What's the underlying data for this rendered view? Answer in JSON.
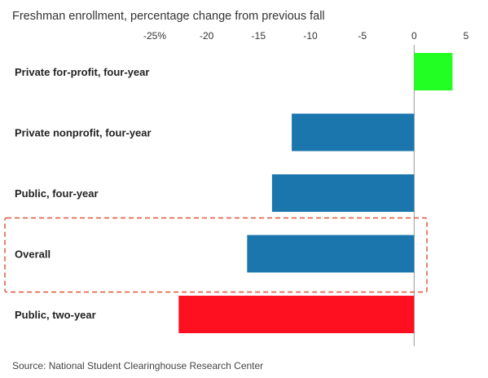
{
  "chart_data": {
    "type": "bar",
    "orientation": "horizontal",
    "title": "Freshman enrollment, percentage change from previous fall",
    "source": "Source: National Student Clearinghouse Research Center",
    "xlim": [
      -25,
      5
    ],
    "tick_values": [
      -25,
      -20,
      -15,
      -10,
      -5,
      0,
      5
    ],
    "tick_labels": [
      "-25%",
      "-20",
      "-15",
      "-10",
      "-5",
      "0",
      "5"
    ],
    "gridlines": false,
    "zero_line": true,
    "highlighted_category": "Overall",
    "highlight_color": "#e0533a",
    "categories": [
      "Private for-profit, four-year",
      "Private nonprofit, four-year",
      "Public, four-year",
      "Overall",
      "Public, two-year"
    ],
    "values": [
      3.7,
      -11.8,
      -13.7,
      -16.1,
      -22.7
    ],
    "bar_colors": [
      "#22ff22",
      "#1a76ad",
      "#1a76ad",
      "#1a76ad",
      "#ff1020"
    ]
  }
}
